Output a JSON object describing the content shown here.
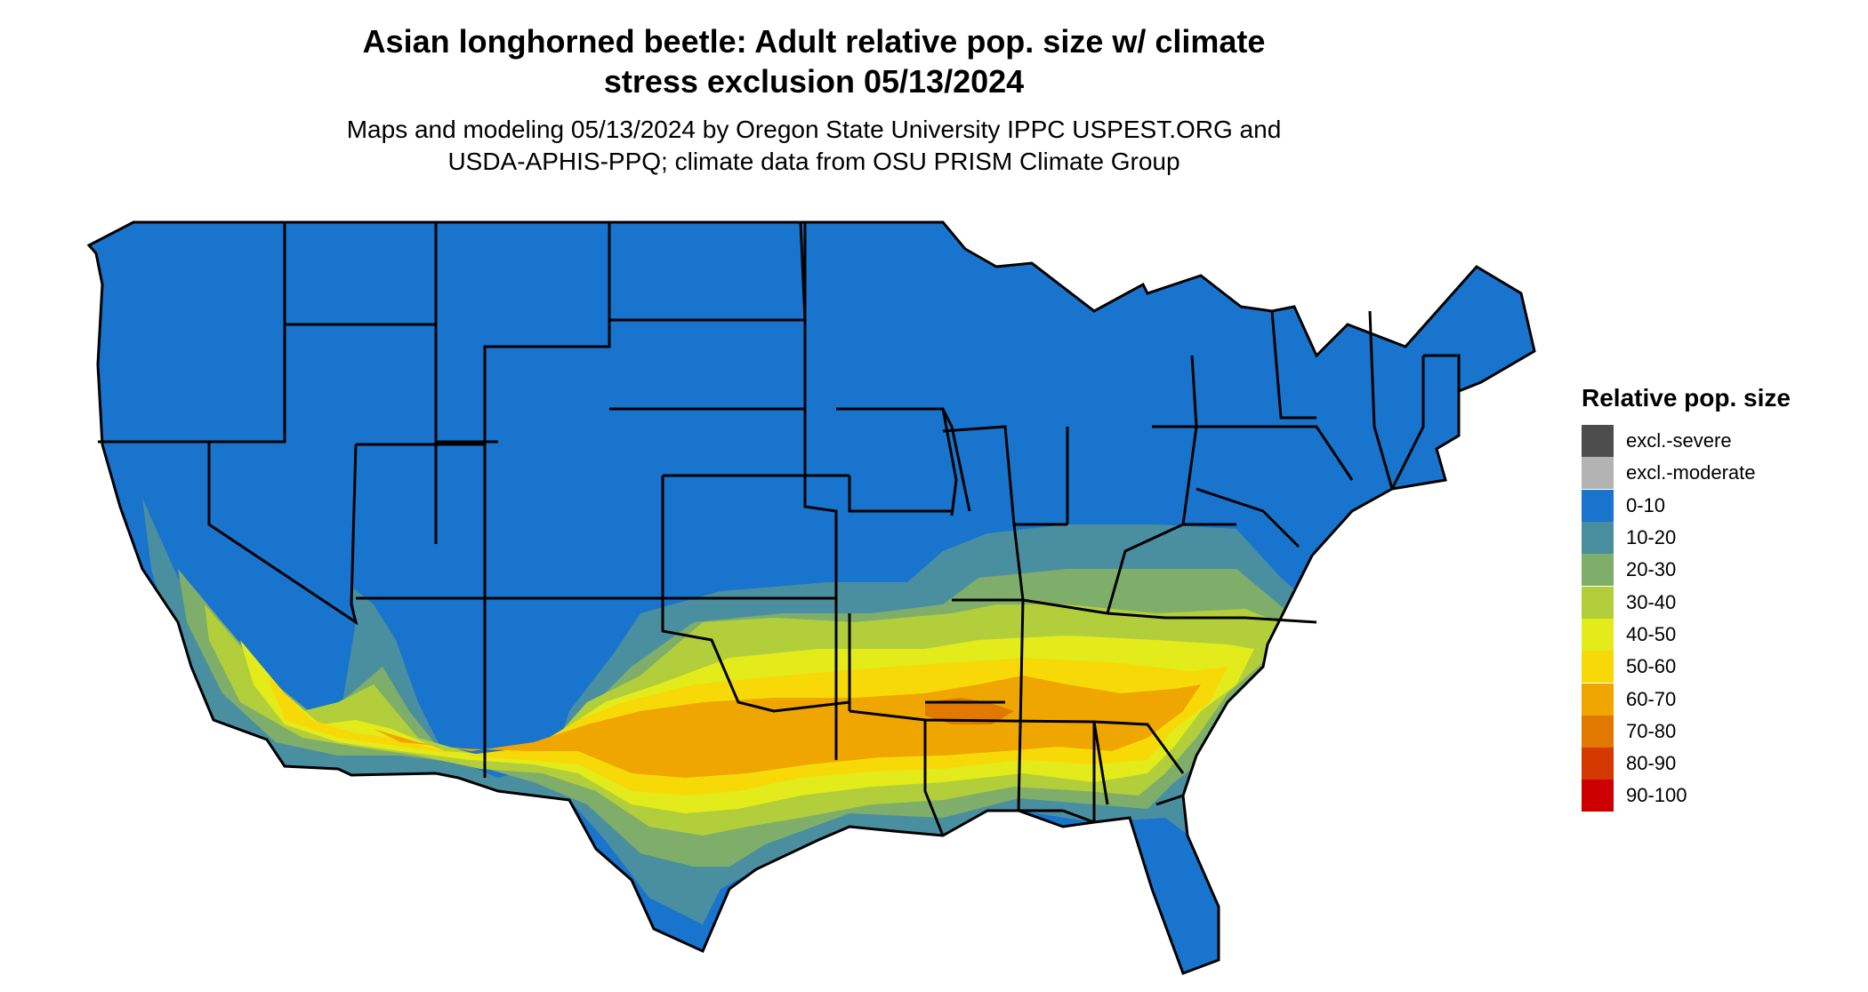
{
  "title": {
    "line1": "Asian longhorned beetle: Adult relative pop. size w/ climate",
    "line2": "stress exclusion 05/13/2024"
  },
  "subtitle": {
    "line1": "Maps and modeling 05/13/2024 by Oregon State University IPPC USPEST.ORG and",
    "line2": "USDA-APHIS-PPQ; climate data from OSU PRISM Climate Group"
  },
  "legend": {
    "title": "Relative pop. size",
    "items": [
      {
        "label": "excl.-severe",
        "color": "#4d4d4d"
      },
      {
        "label": "excl.-moderate",
        "color": "#b3b3b3"
      },
      {
        "label": "0-10",
        "color": "#1874cd"
      },
      {
        "label": "10-20",
        "color": "#4a8fa0"
      },
      {
        "label": "20-30",
        "color": "#7fae6a"
      },
      {
        "label": "30-40",
        "color": "#b2cf3b"
      },
      {
        "label": "40-50",
        "color": "#e3ec1a"
      },
      {
        "label": "50-60",
        "color": "#f7d908"
      },
      {
        "label": "60-70",
        "color": "#efa600"
      },
      {
        "label": "70-80",
        "color": "#e17900"
      },
      {
        "label": "80-90",
        "color": "#d43a00"
      },
      {
        "label": "90-100",
        "color": "#cc0000"
      }
    ]
  },
  "map": {
    "region": "Contiguous United States",
    "boundary_color": "#000000",
    "base_color": "#1874cd"
  }
}
